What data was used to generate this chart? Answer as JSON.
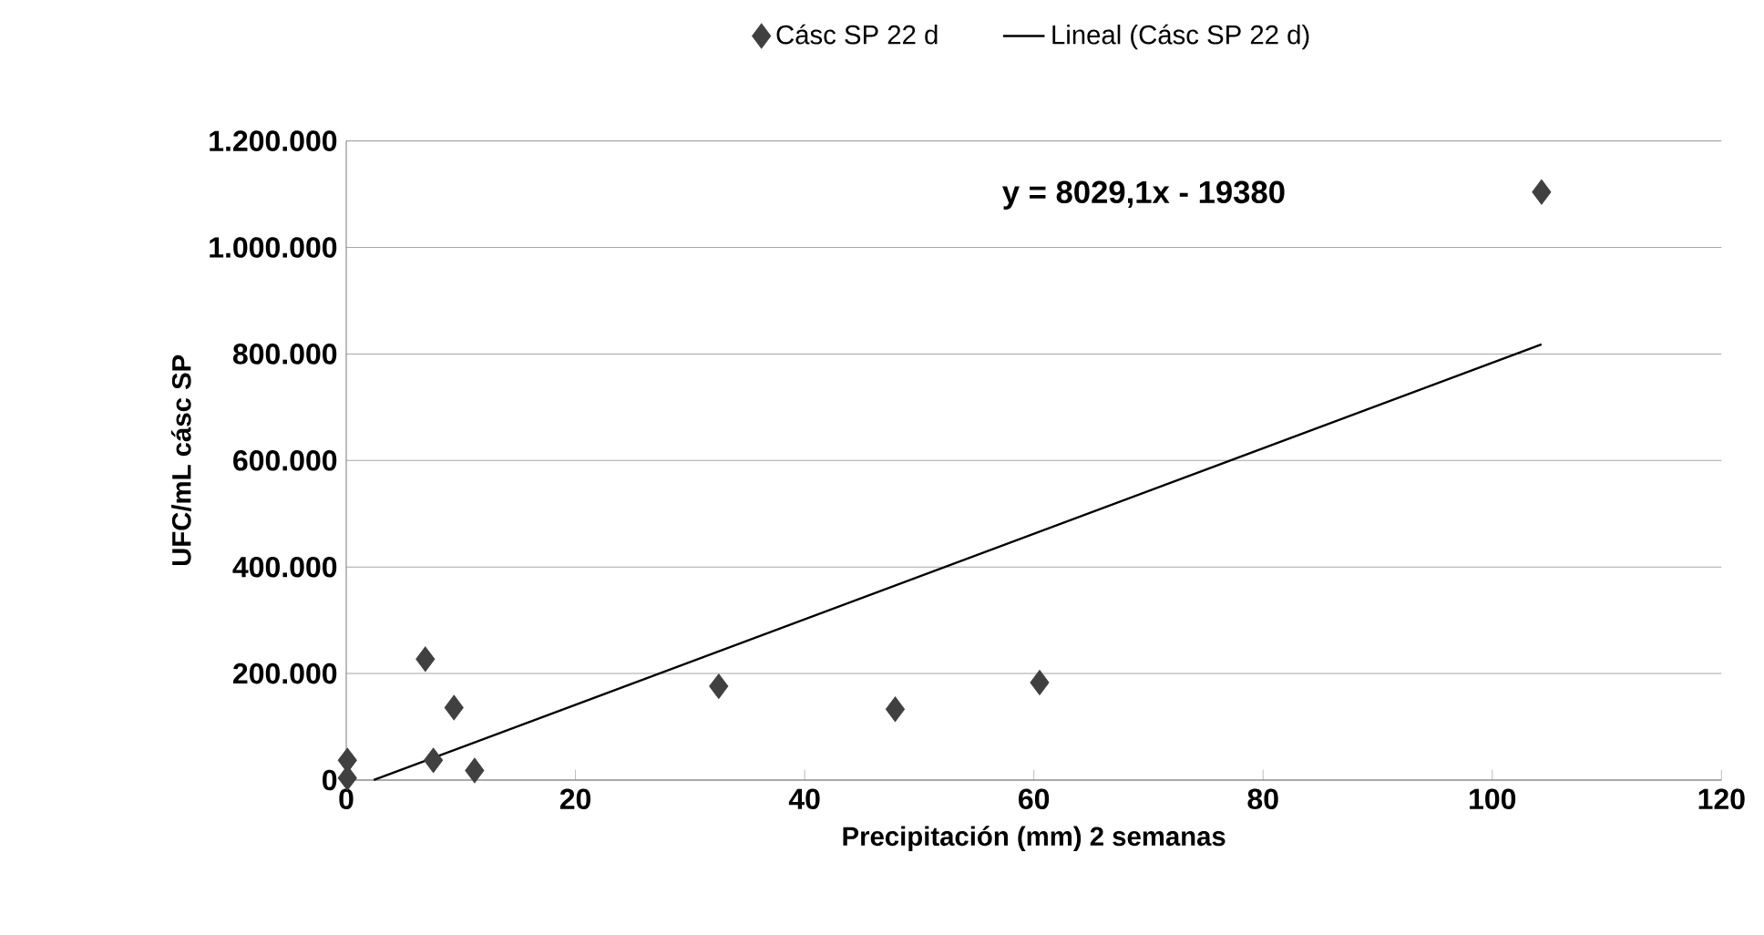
{
  "chart_data": {
    "type": "scatter",
    "xlabel": "Precipitación (mm) 2 semanas",
    "ylabel": "UFC/mL cásc SP",
    "series": [
      {
        "name": "Cásc SP 22 d",
        "marker": "diamond",
        "color": "#404040",
        "x": [
          0.1,
          0.1,
          6.9,
          9.4,
          7.6,
          11.2,
          32.5,
          47.9,
          60.5,
          104.3
        ],
        "values": [
          37000,
          4000,
          227000,
          136000,
          37000,
          18000,
          176000,
          133000,
          183000,
          1104000
        ]
      },
      {
        "name": "Lineal (Cásc SP 22 d)",
        "type": "line",
        "marker": "none",
        "color": "#000000",
        "x": [
          2.4,
          104.3
        ],
        "values": [
          0,
          818000
        ]
      }
    ],
    "annotations": [
      "y = 8029,1x - 19380"
    ],
    "xlim": [
      0,
      120
    ],
    "xticks": [
      0,
      20,
      40,
      60,
      80,
      100,
      120
    ],
    "ylim": [
      0,
      1200000
    ],
    "yticks": [
      0,
      {
        "value": 200000,
        "label": "200.000"
      },
      {
        "value": 400000,
        "label": "400.000"
      },
      {
        "value": 600000,
        "label": "600.000"
      },
      {
        "value": 800000,
        "label": "800.000"
      },
      {
        "value": 1000000,
        "label": "1.000.000"
      },
      {
        "value": 1200000,
        "label": "1.200.000"
      }
    ],
    "grid": "y",
    "legend": "top"
  }
}
